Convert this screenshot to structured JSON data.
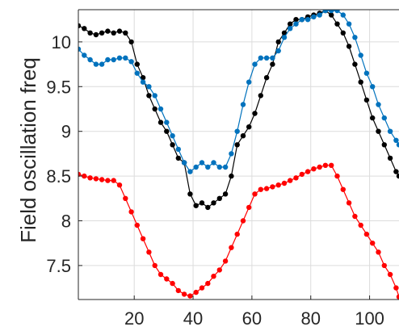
{
  "chart_data": {
    "type": "line",
    "xlabel": "",
    "ylabel": "Field oscillation freq",
    "xlim": [
      1,
      110
    ],
    "ylim": [
      7.12,
      10.36
    ],
    "xticks": [
      20,
      40,
      60,
      80,
      100
    ],
    "yticks": [
      7.5,
      8,
      8.5,
      9,
      9.5,
      10
    ],
    "xtick_labels": [
      "20",
      "40",
      "60",
      "80",
      "100"
    ],
    "ytick_labels": [
      "7.5",
      "8",
      "8.5",
      "9",
      "9.5",
      "10"
    ],
    "grid": true,
    "series": [
      {
        "color": "#000000",
        "x": [
          1,
          3,
          5,
          7,
          9,
          11,
          13,
          15,
          17,
          19,
          21,
          23,
          25,
          27,
          29,
          31,
          33,
          35,
          37,
          39,
          41,
          43,
          45,
          47,
          49,
          51,
          53,
          55,
          57,
          59,
          61,
          63,
          65,
          67,
          69,
          71,
          73,
          75,
          77,
          79,
          81,
          83,
          85,
          87,
          89,
          91,
          93,
          95,
          97,
          99,
          101,
          103,
          105,
          107,
          109,
          110
        ],
        "values": [
          10.18,
          10.15,
          10.1,
          10.08,
          10.1,
          10.12,
          10.1,
          10.12,
          10.1,
          10.0,
          9.75,
          9.6,
          9.4,
          9.25,
          9.1,
          9.0,
          8.85,
          8.7,
          8.65,
          8.3,
          8.17,
          8.2,
          8.15,
          8.2,
          8.25,
          8.3,
          8.5,
          8.85,
          8.95,
          9.05,
          9.2,
          9.4,
          9.6,
          9.75,
          10.0,
          10.1,
          10.2,
          10.25,
          10.25,
          10.28,
          10.3,
          10.32,
          10.35,
          10.3,
          10.2,
          10.1,
          9.95,
          9.75,
          9.55,
          9.35,
          9.15,
          9.0,
          8.85,
          8.7,
          8.55,
          8.5
        ]
      },
      {
        "color": "#0072BD",
        "x": [
          1,
          3,
          5,
          7,
          9,
          11,
          13,
          15,
          17,
          19,
          21,
          23,
          25,
          27,
          29,
          31,
          33,
          35,
          37,
          39,
          41,
          43,
          45,
          47,
          49,
          51,
          53,
          55,
          57,
          59,
          61,
          63,
          65,
          67,
          69,
          71,
          73,
          75,
          77,
          79,
          81,
          83,
          85,
          87,
          89,
          91,
          93,
          95,
          97,
          99,
          101,
          103,
          105,
          107,
          109,
          110
        ],
        "values": [
          9.92,
          9.85,
          9.8,
          9.75,
          9.75,
          9.8,
          9.8,
          9.82,
          9.82,
          9.78,
          9.65,
          9.55,
          9.5,
          9.4,
          9.25,
          9.1,
          8.95,
          8.8,
          8.65,
          8.55,
          8.6,
          8.65,
          8.6,
          8.65,
          8.6,
          8.6,
          8.75,
          9.0,
          9.3,
          9.55,
          9.75,
          9.82,
          9.82,
          9.82,
          9.9,
          10.05,
          10.15,
          10.2,
          10.25,
          10.25,
          10.28,
          10.3,
          10.35,
          10.35,
          10.35,
          10.3,
          10.2,
          10.05,
          9.85,
          9.65,
          9.5,
          9.3,
          9.15,
          9.0,
          8.9,
          8.85
        ]
      },
      {
        "color": "#FF0000",
        "x": [
          1,
          3,
          5,
          7,
          9,
          11,
          13,
          15,
          17,
          19,
          21,
          23,
          25,
          27,
          29,
          31,
          33,
          35,
          37,
          39,
          41,
          43,
          45,
          47,
          49,
          51,
          53,
          55,
          57,
          59,
          61,
          63,
          65,
          67,
          69,
          71,
          73,
          75,
          77,
          79,
          81,
          83,
          85,
          87,
          89,
          91,
          93,
          95,
          97,
          99,
          101,
          103,
          105,
          107,
          109,
          110
        ],
        "values": [
          8.52,
          8.5,
          8.48,
          8.47,
          8.46,
          8.45,
          8.45,
          8.4,
          8.25,
          8.1,
          7.95,
          7.8,
          7.65,
          7.5,
          7.4,
          7.35,
          7.3,
          7.22,
          7.18,
          7.16,
          7.2,
          7.25,
          7.3,
          7.38,
          7.45,
          7.55,
          7.7,
          7.85,
          8.0,
          8.15,
          8.3,
          8.35,
          8.36,
          8.38,
          8.4,
          8.42,
          8.45,
          8.48,
          8.52,
          8.55,
          8.58,
          8.6,
          8.62,
          8.62,
          8.5,
          8.35,
          8.2,
          8.05,
          7.95,
          7.85,
          7.75,
          7.65,
          7.5,
          7.4,
          7.25,
          7.15
        ]
      }
    ]
  }
}
